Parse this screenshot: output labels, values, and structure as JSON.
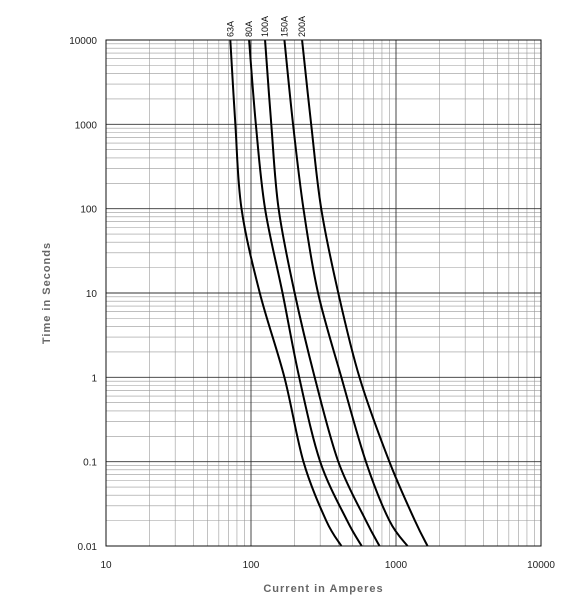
{
  "chart_data": {
    "type": "line",
    "title": "",
    "xlabel": "Current in Amperes",
    "ylabel": "Time in Seconds",
    "xscale": "log",
    "yscale": "log",
    "xlim": [
      10,
      10000
    ],
    "ylim": [
      0.01,
      10000
    ],
    "grid": true,
    "x_ticks": [
      "10",
      "100",
      "1000",
      "10000"
    ],
    "y_ticks": [
      "0.01",
      "0.1",
      "1",
      "10",
      "100",
      "1000",
      "10000"
    ],
    "series": [
      {
        "name": "63A",
        "points": [
          [
            72,
            10000
          ],
          [
            78,
            1000
          ],
          [
            86,
            100
          ],
          [
            115,
            10
          ],
          [
            170,
            1
          ],
          [
            230,
            0.1
          ],
          [
            330,
            0.02
          ],
          [
            420,
            0.01
          ]
        ]
      },
      {
        "name": "80A",
        "points": [
          [
            97,
            10000
          ],
          [
            108,
            1000
          ],
          [
            125,
            100
          ],
          [
            165,
            10
          ],
          [
            215,
            1
          ],
          [
            300,
            0.1
          ],
          [
            460,
            0.02
          ],
          [
            580,
            0.01
          ]
        ]
      },
      {
        "name": "100A",
        "points": [
          [
            125,
            10000
          ],
          [
            138,
            1000
          ],
          [
            155,
            100
          ],
          [
            200,
            10
          ],
          [
            275,
            1
          ],
          [
            400,
            0.1
          ],
          [
            620,
            0.02
          ],
          [
            770,
            0.01
          ]
        ]
      },
      {
        "name": "150A",
        "points": [
          [
            170,
            10000
          ],
          [
            195,
            1000
          ],
          [
            230,
            100
          ],
          [
            290,
            10
          ],
          [
            420,
            1
          ],
          [
            620,
            0.1
          ],
          [
            900,
            0.02
          ],
          [
            1200,
            0.01
          ]
        ]
      },
      {
        "name": "200A",
        "points": [
          [
            225,
            10000
          ],
          [
            260,
            1000
          ],
          [
            305,
            100
          ],
          [
            400,
            10
          ],
          [
            560,
            1
          ],
          [
            900,
            0.1
          ],
          [
            1350,
            0.02
          ],
          [
            1650,
            0.01
          ]
        ]
      }
    ]
  }
}
